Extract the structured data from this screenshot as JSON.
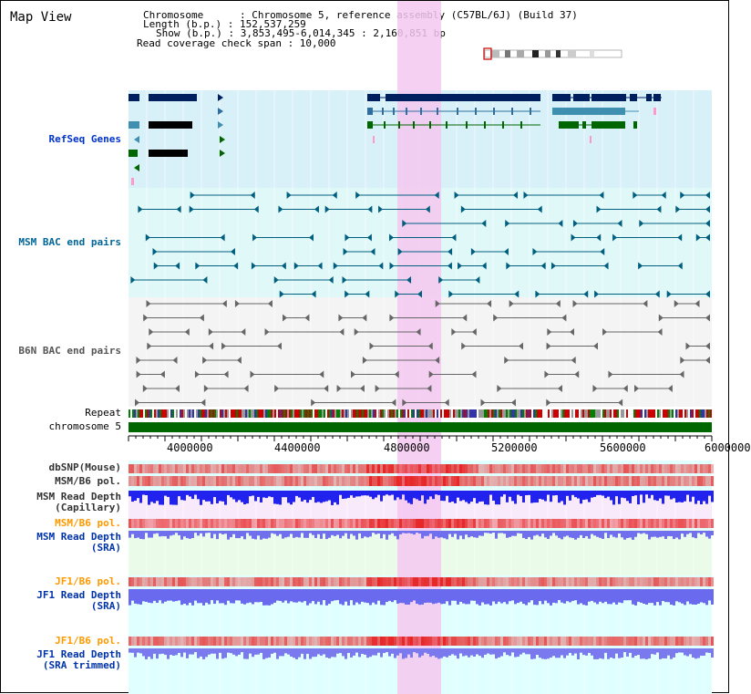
{
  "header": {
    "title": "Map View",
    "chromosome_line": "Chromosome      : Chromosome 5, reference assembly (C57BL/6J) (Build 37)",
    "length_line": "Length (b.p.) : 152,537,259",
    "show_line": "Show (b.p.) : 3,853,495-6,014,345 : 2,160,851 bp",
    "coverage_line": "Read coverage check span : 10,000"
  },
  "tracks": {
    "refseq": "RefSeq Genes",
    "msm_bac": "MSM BAC end pairs",
    "b6n_bac": "B6N BAC end pairs",
    "repeat": "Repeat",
    "chromosome": "chromosome 5",
    "dbsnp": "dbSNP(Mouse)",
    "msm_b6_pol": "MSM/B6 pol.",
    "msm_read_depth_cap_1": "MSM Read Depth",
    "msm_read_depth_cap_2": "(Capillary)",
    "msm_b6_pol_2": "MSM/B6 pol.",
    "msm_read_depth_sra_1": "MSM Read Depth",
    "msm_read_depth_sra_2": "(SRA)",
    "jf1_b6_pol": "JF1/B6 pol.",
    "jf1_read_depth_1": "JF1 Read Depth",
    "jf1_read_depth_2": "(SRA)",
    "jf1_b6_pol_2": "JF1/B6 pol.",
    "jf1_trim_1": "JF1 Read Depth",
    "jf1_trim_2": "(SRA trimmed)"
  },
  "axis": {
    "ticks": [
      "4000000",
      "4400000",
      "4800000",
      "5200000",
      "5600000",
      "6000000"
    ]
  },
  "colors": {
    "highlight": "#f5c8f0",
    "refseq_bg": "#d8f0f8",
    "msm_bg": "#e0f8f8",
    "b6n_bg": "#f4f4f4",
    "navy": "#001f5f",
    "teal": "#005f7f",
    "green": "#006600",
    "chromosome": "#006600"
  }
}
